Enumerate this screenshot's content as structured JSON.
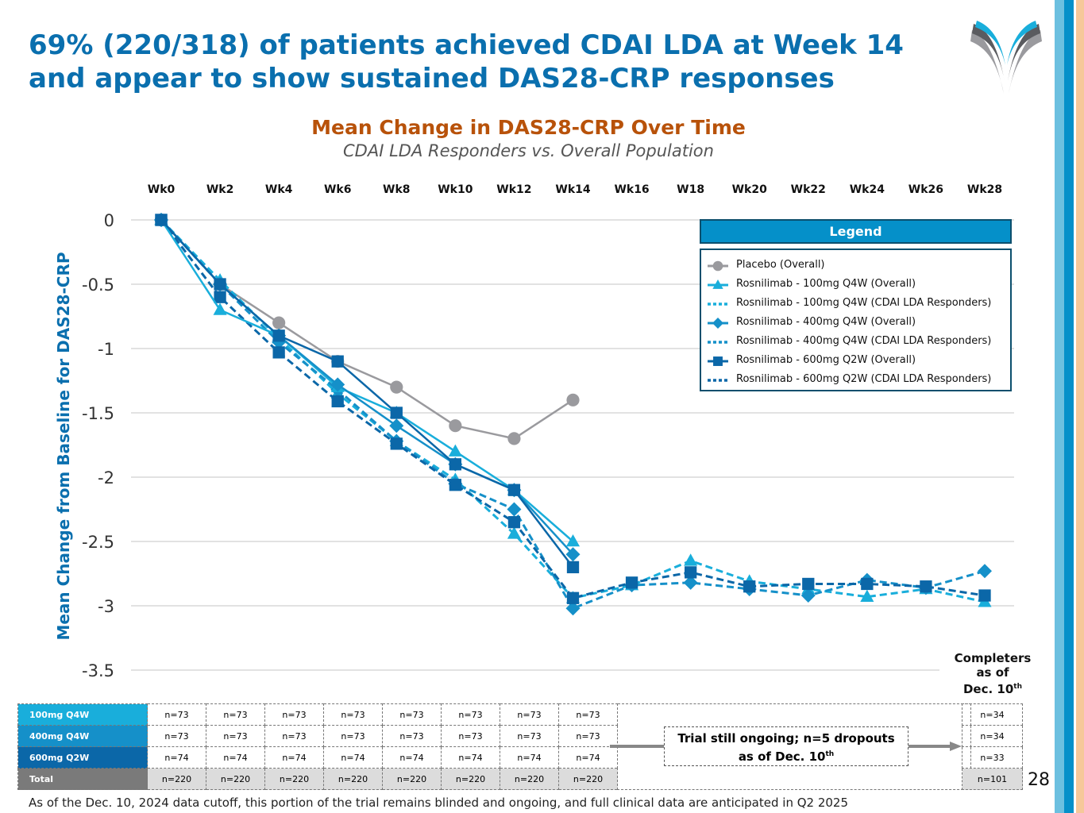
{
  "header": {
    "title_line1": "69% (220/318) of patients achieved CDAI LDA at Week 14",
    "title_line2": "and appear to show sustained DAS28-CRP responses",
    "logo_icon": "company-v-logo"
  },
  "colors": {
    "title": "#0a6fae",
    "subtitle": "#b8520a",
    "placebo": "#9a9a9e",
    "dose100": "#19aedb",
    "dose400": "#1590c9",
    "dose600": "#0b67a8",
    "legend_header": "#0590c9",
    "total_row": "#7a7a7a"
  },
  "chart_data": {
    "type": "line",
    "title": "Mean Change in DAS28-CRP Over Time",
    "subtitle": "CDAI LDA Responders vs. Overall Population",
    "xlabel": "",
    "ylabel": "Mean Change from Baseline for DAS28-CRP",
    "x": [
      "Wk0",
      "Wk2",
      "Wk4",
      "Wk6",
      "Wk8",
      "Wk10",
      "Wk12",
      "Wk14",
      "Wk16",
      "W18",
      "Wk20",
      "Wk22",
      "Wk24",
      "Wk26",
      "Wk28"
    ],
    "ylim": [
      -3.5,
      0
    ],
    "yticks": [
      0,
      -0.5,
      -1,
      -1.5,
      -2,
      -2.5,
      -3,
      -3.5
    ],
    "ytick_labels": [
      "0",
      "-0.5",
      "-1",
      "-1.5",
      "-2",
      "-2.5",
      "-3",
      "-3.5"
    ],
    "grid": true,
    "legend_title": "Legend",
    "legend_position": "top-right",
    "series": [
      {
        "name": "Placebo (Overall)",
        "color_key": "placebo",
        "marker": "circle",
        "style": "solid",
        "values": [
          0,
          -0.5,
          -0.8,
          -1.1,
          -1.3,
          -1.6,
          -1.7,
          -1.4,
          null,
          null,
          null,
          null,
          null,
          null,
          null
        ]
      },
      {
        "name": "Rosnilimab - 100mg Q4W (Overall)",
        "color_key": "dose100",
        "marker": "triangle",
        "style": "solid",
        "values": [
          0,
          -0.7,
          -0.9,
          -1.3,
          -1.5,
          -1.8,
          -2.1,
          -2.5,
          null,
          null,
          null,
          null,
          null,
          null,
          null
        ]
      },
      {
        "name": "Rosnilimab - 100mg Q4W (CDAI LDA Responders)",
        "color_key": "dose100",
        "marker": "triangle",
        "style": "dashed",
        "values": [
          0,
          -0.47,
          -0.92,
          -1.35,
          -1.72,
          -2.02,
          -2.44,
          -2.94,
          -2.84,
          -2.65,
          -2.81,
          -2.87,
          -2.93,
          -2.87,
          -2.97
        ]
      },
      {
        "name": "Rosnilimab - 400mg Q4W (Overall)",
        "color_key": "dose400",
        "marker": "diamond",
        "style": "solid",
        "values": [
          0,
          -0.5,
          -0.9,
          -1.28,
          -1.6,
          -1.9,
          -2.1,
          -2.6,
          null,
          null,
          null,
          null,
          null,
          null,
          null
        ]
      },
      {
        "name": "Rosnilimab - 400mg Q4W (CDAI LDA Responders)",
        "color_key": "dose400",
        "marker": "diamond",
        "style": "dashed",
        "values": [
          0,
          -0.5,
          -0.95,
          -1.32,
          -1.72,
          -2.05,
          -2.25,
          -3.02,
          -2.84,
          -2.82,
          -2.87,
          -2.92,
          -2.8,
          -2.86,
          -2.73
        ]
      },
      {
        "name": "Rosnilimab - 600mg Q2W (Overall)",
        "color_key": "dose600",
        "marker": "square",
        "style": "solid",
        "values": [
          0,
          -0.5,
          -0.9,
          -1.1,
          -1.5,
          -1.9,
          -2.1,
          -2.7,
          null,
          null,
          null,
          null,
          null,
          null,
          null
        ]
      },
      {
        "name": "Rosnilimab - 600mg Q2W (CDAI LDA Responders)",
        "color_key": "dose600",
        "marker": "square",
        "style": "dashed",
        "values": [
          0,
          -0.6,
          -1.03,
          -1.41,
          -1.74,
          -2.06,
          -2.35,
          -2.94,
          -2.82,
          -2.74,
          -2.85,
          -2.83,
          -2.83,
          -2.85,
          -2.92
        ]
      }
    ]
  },
  "sample_table": {
    "rows": [
      {
        "label": "100mg Q4W",
        "color": "#19aedb",
        "counts": [
          "n=73",
          "n=73",
          "n=73",
          "n=73",
          "n=73",
          "n=73",
          "n=73",
          "n=73"
        ],
        "completers": "n=34"
      },
      {
        "label": "400mg Q4W",
        "color": "#1590c9",
        "counts": [
          "n=73",
          "n=73",
          "n=73",
          "n=73",
          "n=73",
          "n=73",
          "n=73",
          "n=73"
        ],
        "completers": "n=34"
      },
      {
        "label": "600mg Q2W",
        "color": "#0b67a8",
        "counts": [
          "n=74",
          "n=74",
          "n=74",
          "n=74",
          "n=74",
          "n=74",
          "n=74",
          "n=74"
        ],
        "completers": "n=33"
      },
      {
        "label": "Total",
        "color": "#7a7a7a",
        "counts": [
          "n=220",
          "n=220",
          "n=220",
          "n=220",
          "n=220",
          "n=220",
          "n=220",
          "n=220"
        ],
        "completers": "n=101"
      }
    ],
    "note_line1": "Trial still ongoing; n=5 dropouts",
    "note_line2_prefix": "as of Dec. 10",
    "note_line2_sup": "th",
    "completers_header_line1": "Completers",
    "completers_header_line2": "as of",
    "completers_header_line3_prefix": "Dec. 10",
    "completers_header_line3_sup": "th"
  },
  "footer": {
    "text": "As of the Dec. 10, 2024 data cutoff, this portion of the trial remains blinded and ongoing, and full clinical data are anticipated in Q2 2025",
    "page_number": "28"
  }
}
